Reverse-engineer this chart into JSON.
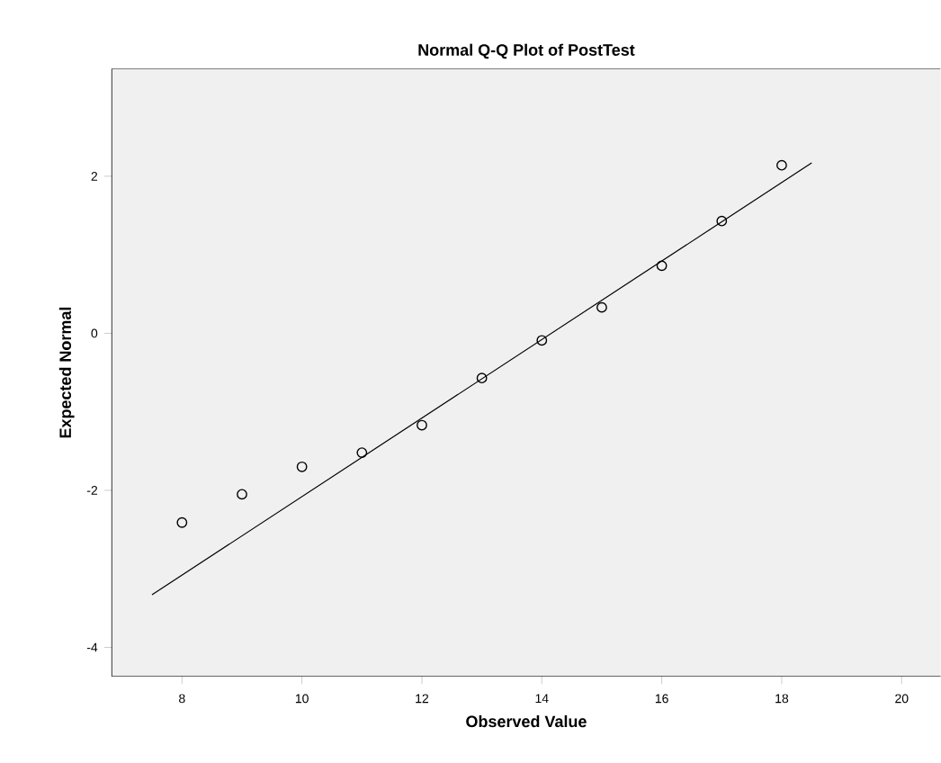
{
  "chart_data": {
    "type": "scatter",
    "title": "Normal Q-Q Plot of PostTest",
    "xlabel": "Observed Value",
    "ylabel": "Expected Normal",
    "xlim": [
      6.83,
      20.65
    ],
    "ylim": [
      -4.37,
      3.37
    ],
    "xticks": [
      8,
      10,
      12,
      14,
      16,
      18,
      20
    ],
    "yticks": [
      -4,
      -2,
      0,
      2
    ],
    "marker": "circle",
    "series": [
      {
        "color": "#000000",
        "x": [
          8,
          9,
          10,
          11,
          12,
          13,
          14,
          15,
          16,
          17,
          18
        ],
        "values": [
          -2.41,
          -2.05,
          -1.7,
          -1.52,
          -1.17,
          -0.57,
          -0.09,
          0.33,
          0.86,
          1.43,
          2.14
        ]
      },
      {
        "type": "line",
        "marker": "none",
        "color": "#000000",
        "x": [
          7.5,
          18.5
        ],
        "values": [
          -3.33,
          2.17
        ]
      }
    ]
  }
}
